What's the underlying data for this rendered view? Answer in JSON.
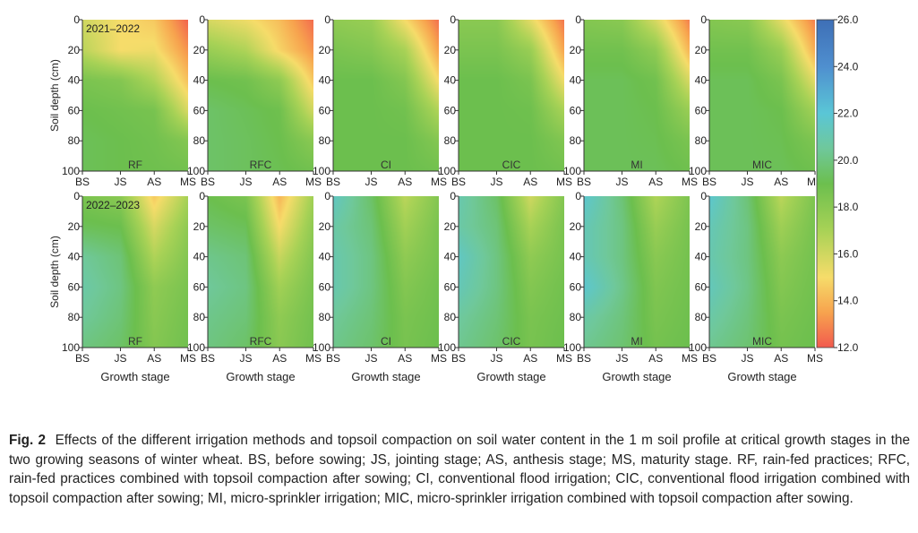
{
  "chart_data": {
    "type": "heatmap",
    "rows": [
      {
        "season": "2021–2022",
        "panels": [
          {
            "label": "RF",
            "grid": [
              [
                16.0,
                15.0,
                14.5,
                12.2
              ],
              [
                16.5,
                15.0,
                15.2,
                13.2
              ],
              [
                18.5,
                18.2,
                16.8,
                14.3
              ],
              [
                19.0,
                18.8,
                18.6,
                15.8
              ],
              [
                19.2,
                19.0,
                18.8,
                18.2
              ],
              [
                19.2,
                19.0,
                18.9,
                18.8
              ]
            ]
          },
          {
            "label": "RFC",
            "grid": [
              [
                15.8,
                15.2,
                14.2,
                12.4
              ],
              [
                17.5,
                16.8,
                14.8,
                13.2
              ],
              [
                19.0,
                18.8,
                17.8,
                14.5
              ],
              [
                19.5,
                19.2,
                18.9,
                16.0
              ],
              [
                19.5,
                19.3,
                19.0,
                18.0
              ],
              [
                19.5,
                19.3,
                19.1,
                18.8
              ]
            ]
          },
          {
            "label": "CI",
            "grid": [
              [
                17.8,
                17.5,
                15.0,
                12.5
              ],
              [
                18.5,
                18.2,
                17.0,
                13.5
              ],
              [
                19.0,
                19.0,
                18.2,
                15.0
              ],
              [
                19.0,
                19.0,
                18.8,
                16.8
              ],
              [
                19.0,
                19.0,
                19.0,
                18.2
              ],
              [
                19.0,
                19.0,
                19.0,
                18.8
              ]
            ]
          },
          {
            "label": "CIC",
            "grid": [
              [
                18.0,
                18.0,
                15.5,
                12.6
              ],
              [
                18.5,
                18.5,
                17.5,
                13.6
              ],
              [
                19.0,
                19.0,
                18.5,
                15.2
              ],
              [
                19.0,
                19.0,
                18.9,
                17.0
              ],
              [
                19.0,
                19.0,
                19.0,
                18.3
              ],
              [
                19.0,
                19.0,
                19.0,
                18.8
              ]
            ]
          },
          {
            "label": "MI",
            "grid": [
              [
                18.2,
                18.0,
                15.8,
                12.8
              ],
              [
                18.8,
                18.8,
                17.8,
                14.0
              ],
              [
                19.2,
                19.2,
                18.8,
                15.8
              ],
              [
                19.2,
                19.2,
                19.0,
                17.5
              ],
              [
                19.2,
                19.2,
                19.1,
                18.5
              ],
              [
                19.2,
                19.2,
                19.2,
                18.9
              ]
            ]
          },
          {
            "label": "MIC",
            "grid": [
              [
                18.2,
                18.0,
                15.5,
                12.8
              ],
              [
                18.8,
                18.8,
                17.5,
                13.8
              ],
              [
                19.2,
                19.2,
                18.5,
                15.5
              ],
              [
                19.2,
                19.2,
                19.0,
                17.2
              ],
              [
                19.2,
                19.2,
                19.1,
                18.4
              ],
              [
                19.2,
                19.2,
                19.2,
                18.9
              ]
            ]
          }
        ]
      },
      {
        "season": "2022–2023",
        "panels": [
          {
            "label": "RF",
            "grid": [
              [
                18.5,
                18.0,
                14.5,
                17.0
              ],
              [
                19.2,
                19.0,
                15.8,
                17.8
              ],
              [
                20.5,
                19.8,
                16.8,
                18.2
              ],
              [
                20.8,
                20.0,
                17.8,
                18.5
              ],
              [
                20.5,
                19.8,
                18.0,
                18.7
              ],
              [
                20.0,
                19.5,
                18.2,
                18.8
              ]
            ]
          },
          {
            "label": "RFC",
            "grid": [
              [
                19.0,
                18.5,
                14.0,
                17.2
              ],
              [
                19.5,
                19.2,
                15.0,
                17.8
              ],
              [
                20.2,
                19.8,
                16.2,
                18.2
              ],
              [
                20.5,
                20.0,
                17.2,
                18.5
              ],
              [
                20.2,
                19.8,
                17.8,
                18.7
              ],
              [
                20.0,
                19.5,
                18.0,
                18.8
              ]
            ]
          },
          {
            "label": "CI",
            "grid": [
              [
                21.5,
                19.5,
                16.5,
                18.2
              ],
              [
                20.8,
                19.8,
                17.2,
                18.5
              ],
              [
                21.0,
                20.0,
                17.8,
                18.6
              ],
              [
                21.0,
                20.0,
                18.2,
                18.8
              ],
              [
                20.5,
                19.8,
                18.5,
                18.9
              ],
              [
                20.2,
                19.6,
                18.6,
                19.0
              ]
            ]
          },
          {
            "label": "CIC",
            "grid": [
              [
                21.0,
                19.5,
                16.0,
                18.2
              ],
              [
                20.8,
                19.8,
                17.0,
                18.5
              ],
              [
                21.5,
                20.0,
                17.8,
                18.6
              ],
              [
                21.2,
                20.0,
                18.2,
                18.8
              ],
              [
                20.6,
                19.8,
                18.5,
                18.9
              ],
              [
                20.3,
                19.6,
                18.6,
                19.0
              ]
            ]
          },
          {
            "label": "MI",
            "grid": [
              [
                21.8,
                19.8,
                16.8,
                18.4
              ],
              [
                21.2,
                20.0,
                17.5,
                18.6
              ],
              [
                21.2,
                20.0,
                18.0,
                18.7
              ],
              [
                21.8,
                20.2,
                18.3,
                18.8
              ],
              [
                20.8,
                19.9,
                18.5,
                18.9
              ],
              [
                20.3,
                19.7,
                18.7,
                19.0
              ]
            ]
          },
          {
            "label": "MIC",
            "grid": [
              [
                21.8,
                19.8,
                16.5,
                18.4
              ],
              [
                21.2,
                20.0,
                17.3,
                18.6
              ],
              [
                21.0,
                20.0,
                17.9,
                18.7
              ],
              [
                21.3,
                20.1,
                18.2,
                18.8
              ],
              [
                20.8,
                19.9,
                18.5,
                18.9
              ],
              [
                20.3,
                19.7,
                18.7,
                19.0
              ]
            ]
          }
        ]
      }
    ],
    "x_categories": [
      "BS",
      "JS",
      "AS",
      "MS"
    ],
    "y_depths": [
      0,
      20,
      40,
      60,
      80,
      100
    ],
    "y_ticks": [
      "0",
      "20",
      "40",
      "60",
      "80",
      "100"
    ],
    "ylabel": "Soil depth (cm)",
    "xlabel": "Growth stage",
    "colorbar": {
      "min": 12.0,
      "max": 26.0,
      "ticks": [
        "26.0",
        "24.0",
        "22.0",
        "20.0",
        "18.0",
        "16.0",
        "14.0",
        "12.0"
      ],
      "stops": [
        {
          "v": 12.0,
          "c": "#f25a4e"
        },
        {
          "v": 13.5,
          "c": "#f7a34e"
        },
        {
          "v": 15.0,
          "c": "#f6dc6a"
        },
        {
          "v": 17.0,
          "c": "#a8d256"
        },
        {
          "v": 19.0,
          "c": "#6cbf4e"
        },
        {
          "v": 20.5,
          "c": "#6fc89b"
        },
        {
          "v": 22.0,
          "c": "#5ac6d6"
        },
        {
          "v": 24.0,
          "c": "#4f8fcf"
        },
        {
          "v": 26.0,
          "c": "#3e6fb6"
        }
      ]
    }
  },
  "caption": {
    "fig_label": "Fig. 2",
    "text": "Effects of the different irrigation methods and topsoil compaction on soil water content in the 1 m soil profile at critical growth stages in the two growing seasons of winter wheat.  BS, before sowing; JS, jointing stage; AS, anthesis stage; MS, maturity stage. RF, rain-fed practices; RFC, rain-fed practices combined with topsoil compaction after sowing; CI, conventional flood irrigation; CIC, conventional flood irrigation combined with topsoil compaction after sowing; MI, micro-sprinkler irrigation; MIC, micro-sprinkler irrigation combined with topsoil compaction after sowing."
  }
}
